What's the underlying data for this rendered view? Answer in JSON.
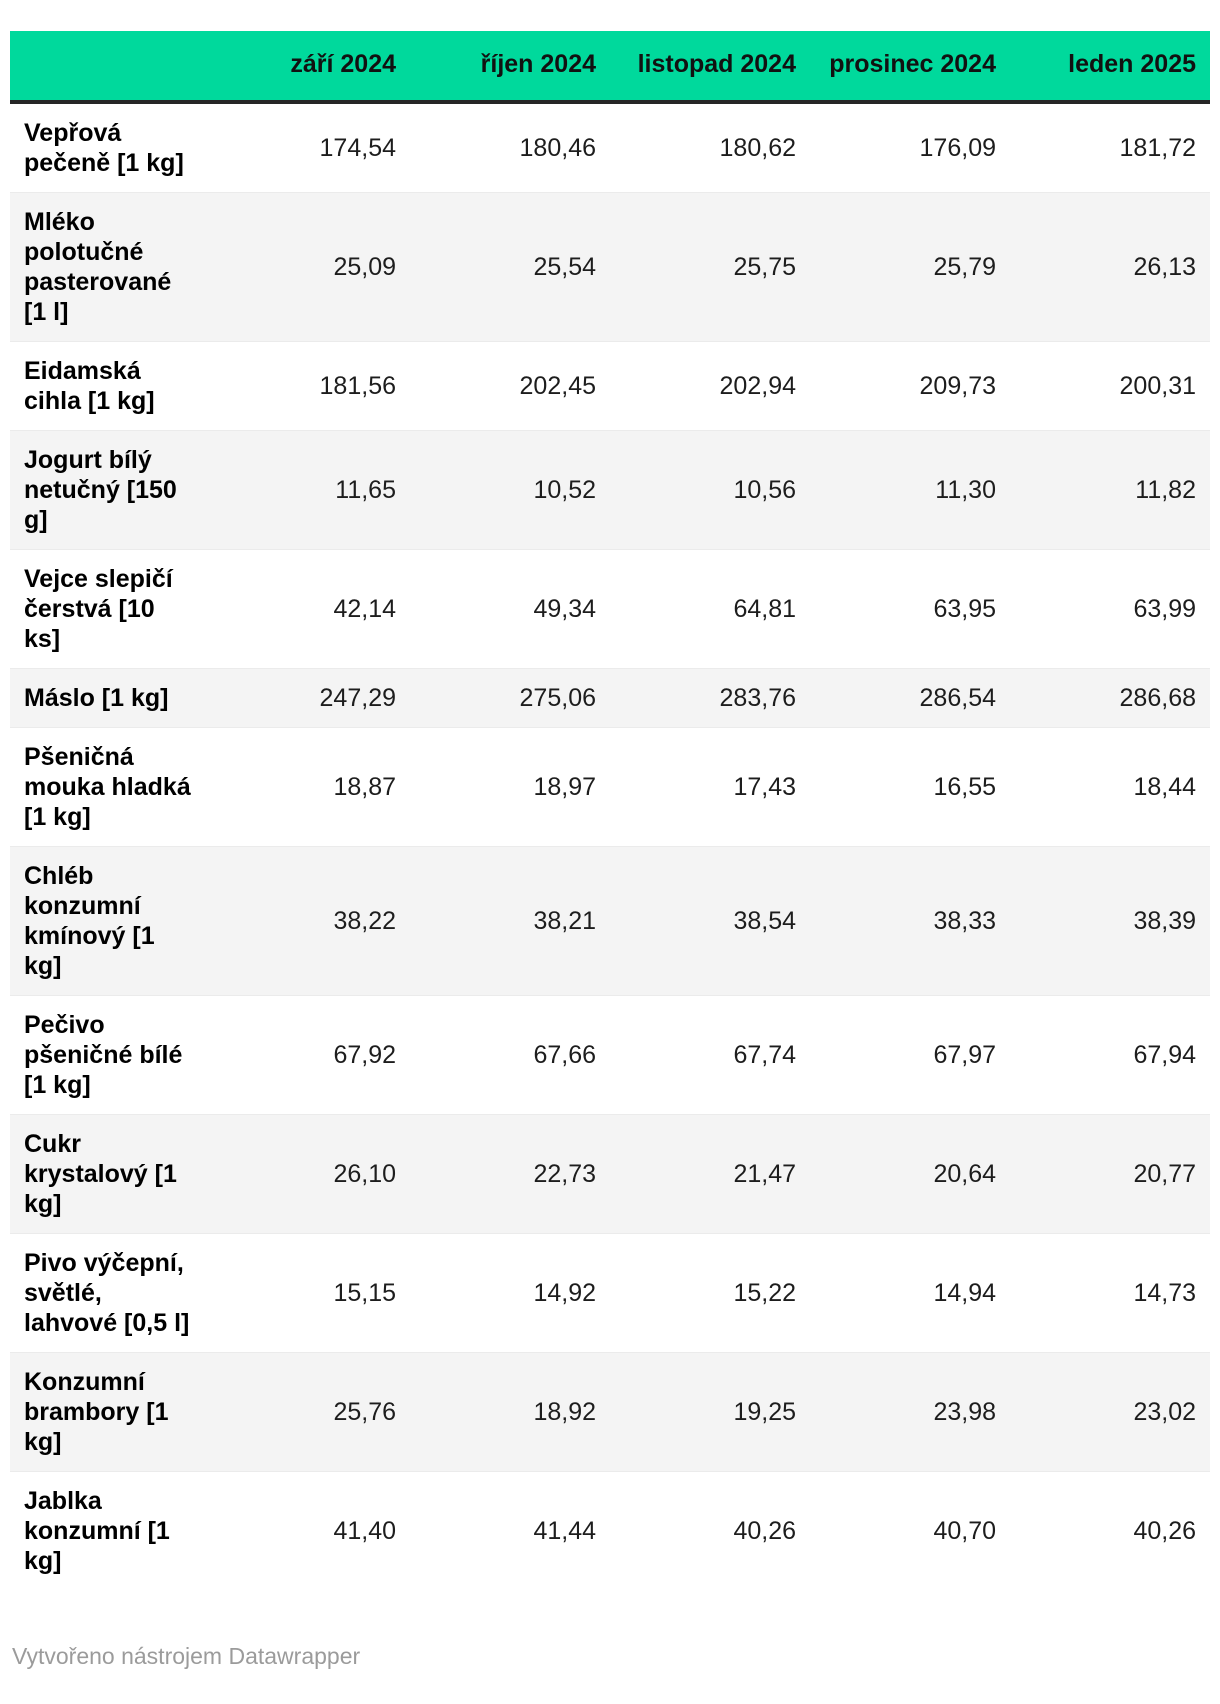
{
  "chart_data": {
    "type": "table",
    "columns": [
      "září 2024",
      "říjen 2024",
      "listopad 2024",
      "prosinec 2024",
      "leden 2025"
    ],
    "rows": [
      {
        "label": "Vepřová pečeně [1 kg]",
        "values": [
          "174,54",
          "180,46",
          "180,62",
          "176,09",
          "181,72"
        ]
      },
      {
        "label": "Mléko polotučné pasterované [1 l]",
        "values": [
          "25,09",
          "25,54",
          "25,75",
          "25,79",
          "26,13"
        ]
      },
      {
        "label": "Eidamská cihla [1 kg]",
        "values": [
          "181,56",
          "202,45",
          "202,94",
          "209,73",
          "200,31"
        ]
      },
      {
        "label": "Jogurt bílý netučný [150 g]",
        "values": [
          "11,65",
          "10,52",
          "10,56",
          "11,30",
          "11,82"
        ]
      },
      {
        "label": "Vejce slepičí čerstvá [10 ks]",
        "values": [
          "42,14",
          "49,34",
          "64,81",
          "63,95",
          "63,99"
        ]
      },
      {
        "label": "Máslo [1 kg]",
        "values": [
          "247,29",
          "275,06",
          "283,76",
          "286,54",
          "286,68"
        ]
      },
      {
        "label": "Pšeničná mouka hladká [1 kg]",
        "values": [
          "18,87",
          "18,97",
          "17,43",
          "16,55",
          "18,44"
        ]
      },
      {
        "label": "Chléb konzumní kmínový [1 kg]",
        "values": [
          "38,22",
          "38,21",
          "38,54",
          "38,33",
          "38,39"
        ]
      },
      {
        "label": "Pečivo pšeničné bílé [1 kg]",
        "values": [
          "67,92",
          "67,66",
          "67,74",
          "67,97",
          "67,94"
        ]
      },
      {
        "label": "Cukr krystalový [1 kg]",
        "values": [
          "26,10",
          "22,73",
          "21,47",
          "20,64",
          "20,77"
        ]
      },
      {
        "label": "Pivo výčepní, světlé, lahvové [0,5 l]",
        "values": [
          "15,15",
          "14,92",
          "15,22",
          "14,94",
          "14,73"
        ]
      },
      {
        "label": "Konzumní brambory [1 kg]",
        "values": [
          "25,76",
          "18,92",
          "19,25",
          "23,98",
          "23,02"
        ]
      },
      {
        "label": "Jablka konzumní [1 kg]",
        "values": [
          "41,40",
          "41,44",
          "40,26",
          "40,70",
          "40,26"
        ]
      }
    ],
    "title": "",
    "legend_position": "none",
    "grid": "row-stripes"
  },
  "footer": {
    "attribution": "Vytvořeno nástrojem Datawrapper"
  },
  "colors": {
    "header_bg": "#00d99c",
    "header_border": "#262626",
    "row_alt_bg": "#f4f4f4",
    "text": "#1d1d1d",
    "footer_text": "#9b9b9b"
  }
}
